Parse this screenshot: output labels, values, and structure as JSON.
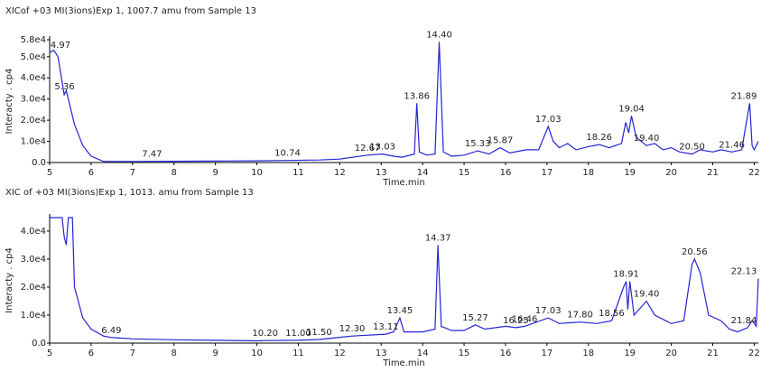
{
  "chart_data": [
    {
      "type": "line",
      "title": "XICof +03 MI(3ions)Exp 1, 1007.7 amu from Sample 13",
      "x_label": "Time.min",
      "y_label": "Interacty . cp4",
      "color": "#2424d6",
      "xlim": [
        5,
        22.1
      ],
      "xticks": [
        5,
        6,
        7,
        8,
        9,
        10,
        11,
        12,
        13,
        14,
        15,
        16,
        17,
        18,
        19,
        20,
        21,
        22
      ],
      "ylim": [
        0,
        58000
      ],
      "yticks": [
        {
          "value": 0,
          "label": "0.0"
        },
        {
          "value": 10000,
          "label": "1.0e4"
        },
        {
          "value": 20000,
          "label": "2.0e4"
        },
        {
          "value": 30000,
          "label": "3.0e4"
        },
        {
          "value": 40000,
          "label": "4.0e4"
        },
        {
          "value": 50000,
          "label": "5.0e4"
        },
        {
          "value": 58000,
          "label": "5.8e4"
        }
      ],
      "x": [
        5.0,
        5.1,
        5.2,
        5.3,
        5.35,
        5.4,
        5.45,
        5.6,
        5.8,
        6.0,
        6.3,
        7,
        8,
        9,
        10,
        10.74,
        11.5,
        12,
        12.67,
        13.03,
        13.3,
        13.5,
        13.8,
        13.86,
        13.92,
        14.1,
        14.3,
        14.4,
        14.5,
        14.7,
        15.0,
        15.33,
        15.6,
        15.87,
        16.1,
        16.5,
        16.8,
        17.03,
        17.15,
        17.3,
        17.5,
        17.7,
        18.0,
        18.26,
        18.5,
        18.8,
        18.9,
        18.97,
        19.04,
        19.15,
        19.4,
        19.6,
        19.8,
        20.0,
        20.2,
        20.5,
        20.7,
        21.0,
        21.2,
        21.46,
        21.7,
        21.89,
        21.95,
        22.0,
        22.1
      ],
      "values": [
        52000,
        53000,
        50000,
        38000,
        32000,
        34000,
        30000,
        18000,
        8000,
        3000,
        500,
        500,
        600,
        700,
        800,
        1000,
        1200,
        1600,
        3500,
        4000,
        3000,
        2500,
        4000,
        28000,
        5000,
        3500,
        4000,
        57000,
        5000,
        3000,
        3500,
        5500,
        4000,
        7000,
        4500,
        6000,
        6000,
        17000,
        10000,
        7000,
        9000,
        6000,
        7500,
        8500,
        7000,
        9000,
        19000,
        14000,
        22000,
        12000,
        8000,
        9000,
        6000,
        7000,
        5000,
        4000,
        6000,
        5000,
        6000,
        5000,
        6000,
        28000,
        8000,
        6000,
        10000
      ],
      "peak_labels": [
        {
          "value": 4.97,
          "label": "4.97"
        },
        {
          "value": 5.36,
          "label": "5.36"
        },
        {
          "value": 7.47,
          "label": "7.47"
        },
        {
          "value": 10.74,
          "label": "10.74"
        },
        {
          "value": 12.67,
          "label": "12.67"
        },
        {
          "value": 13.03,
          "label": "13.03"
        },
        {
          "value": 13.86,
          "label": "13.86"
        },
        {
          "value": 14.4,
          "label": "14.40"
        },
        {
          "value": 15.33,
          "label": "15.33"
        },
        {
          "value": 15.87,
          "label": "15.87"
        },
        {
          "value": 17.03,
          "label": "17.03"
        },
        {
          "value": 18.26,
          "label": "18.26"
        },
        {
          "value": 19.04,
          "label": "19.04"
        },
        {
          "value": 19.4,
          "label": "19.40"
        },
        {
          "value": 20.5,
          "label": "20.50"
        },
        {
          "value": 21.46,
          "label": "21.46"
        },
        {
          "value": 21.89,
          "label": "21.89"
        }
      ]
    },
    {
      "type": "line",
      "title": "XIC of +03 MI(3ions)Exp 1, 1013. amu from Sample 13",
      "x_label": "Time.min",
      "y_label": "Interacty . cp4",
      "color": "#2424d6",
      "xlim": [
        5,
        22.1
      ],
      "xticks": [
        5,
        6,
        7,
        8,
        9,
        10,
        11,
        12,
        13,
        14,
        15,
        16,
        17,
        18,
        19,
        20,
        21,
        22
      ],
      "ylim": [
        0,
        44800
      ],
      "yticks": [
        {
          "value": 0,
          "label": "0.0"
        },
        {
          "value": 10000,
          "label": "1.0e4"
        },
        {
          "value": 20000,
          "label": "2.0e4"
        },
        {
          "value": 30000,
          "label": "3.0e4"
        },
        {
          "value": 40000,
          "label": "4.0e4"
        }
      ],
      "x": [
        5.0,
        5.3,
        5.35,
        5.4,
        5.45,
        5.55,
        5.6,
        5.8,
        6.0,
        6.3,
        6.49,
        7,
        8,
        9,
        10,
        10.2,
        11,
        11.5,
        12.3,
        13.11,
        13.3,
        13.45,
        13.55,
        14.0,
        14.3,
        14.37,
        14.45,
        14.7,
        15.0,
        15.27,
        15.5,
        16.0,
        16.25,
        16.46,
        17.03,
        17.3,
        17.8,
        18.2,
        18.56,
        18.85,
        18.91,
        18.95,
        19.0,
        19.1,
        19.4,
        19.6,
        20.0,
        20.3,
        20.5,
        20.56,
        20.7,
        20.9,
        21.2,
        21.4,
        21.6,
        21.84,
        21.95,
        22.05,
        22.1
      ],
      "values": [
        44800,
        44800,
        38000,
        35000,
        44800,
        44800,
        20000,
        9000,
        5000,
        2500,
        2000,
        1500,
        1200,
        1000,
        800,
        900,
        1000,
        1300,
        2500,
        3200,
        4000,
        9000,
        4000,
        4000,
        5000,
        35000,
        6000,
        4500,
        4500,
        6500,
        5000,
        6000,
        5500,
        6000,
        9000,
        7000,
        7500,
        7000,
        8000,
        20000,
        22000,
        12000,
        22000,
        10000,
        15000,
        10000,
        7000,
        8000,
        28000,
        30000,
        25000,
        10000,
        8000,
        5000,
        4000,
        5500,
        8000,
        6000,
        23000
      ],
      "peak_labels": [
        {
          "value": 6.49,
          "label": "6.49"
        },
        {
          "value": 10.2,
          "label": "10.20"
        },
        {
          "value": 11.0,
          "label": "11.00"
        },
        {
          "value": 11.5,
          "label": "11.50"
        },
        {
          "value": 12.3,
          "label": "12.30"
        },
        {
          "value": 13.11,
          "label": "13.11"
        },
        {
          "value": 13.45,
          "label": "13.45"
        },
        {
          "value": 14.37,
          "label": "14.37"
        },
        {
          "value": 15.27,
          "label": "15.27"
        },
        {
          "value": 16.25,
          "label": "16.25"
        },
        {
          "value": 16.46,
          "label": "16.46"
        },
        {
          "value": 17.03,
          "label": "17.03"
        },
        {
          "value": 17.8,
          "label": "17.80"
        },
        {
          "value": 18.56,
          "label": "18.56"
        },
        {
          "value": 18.91,
          "label": "18.91"
        },
        {
          "value": 19.4,
          "label": "19.40"
        },
        {
          "value": 20.56,
          "label": "20.56"
        },
        {
          "value": 21.84,
          "label": "21.84"
        },
        {
          "value": 22.13,
          "label": "22.13"
        }
      ]
    }
  ]
}
